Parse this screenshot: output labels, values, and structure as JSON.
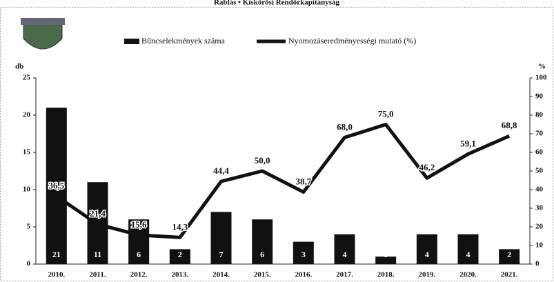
{
  "chart_data": {
    "type": "bar_line",
    "title": "Rablás • Kiskőrösi Rendőrkapitányság",
    "y_label": "db",
    "y2_label": "%",
    "categories": [
      "2010.",
      "2011.",
      "2012.",
      "2013.",
      "2014.",
      "2015.",
      "2016.",
      "2017.",
      "2018.",
      "2019.",
      "2020.",
      "2021."
    ],
    "series": [
      {
        "name": "Bűncselekmények száma",
        "color": "#111111",
        "kind": "bar",
        "values": [
          21,
          11,
          6,
          2,
          7,
          6,
          3,
          4,
          1,
          4,
          4,
          2
        ]
      },
      {
        "name": "Nyomozáseredményességi mutató (%)",
        "color": "#111111",
        "kind": "line",
        "axis": "y2",
        "values": [
          36.5,
          21.4,
          15.6,
          14.3,
          44.4,
          50.0,
          38.7,
          68.0,
          75.0,
          46.2,
          59.1,
          68.8
        ],
        "value_labels": [
          "36,5",
          "21,4",
          "15,6",
          "14,3",
          "44,4",
          "50,0",
          "38,7",
          "68,0",
          "75,0",
          "46,2",
          "59,1",
          "68,8"
        ]
      }
    ],
    "ylim": [
      0,
      25
    ],
    "yticks": [
      0,
      5,
      10,
      15,
      20,
      25
    ],
    "y2lim": [
      0,
      100
    ],
    "y2ticks": [
      0,
      10,
      20,
      30,
      40,
      50,
      60,
      70,
      80,
      90,
      100
    ]
  }
}
